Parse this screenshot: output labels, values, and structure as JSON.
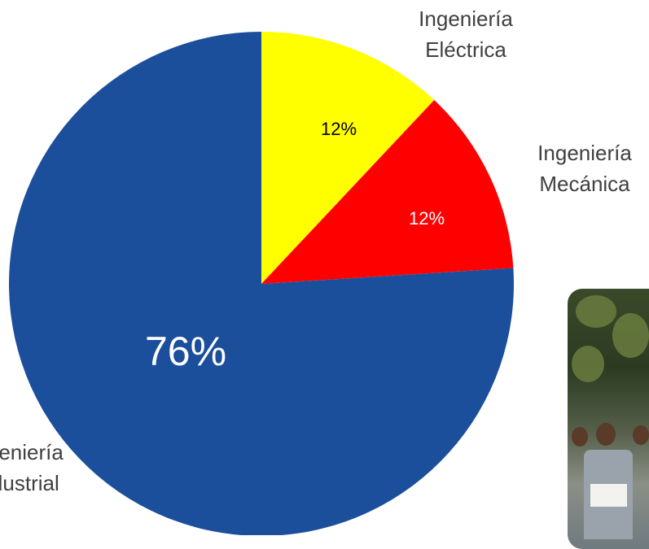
{
  "chart_data": {
    "type": "pie",
    "slices": [
      {
        "label_lines": [
          "Ingeniería",
          "Eléctrica"
        ],
        "value": 12,
        "value_label": "12%",
        "color": "#FFFF00",
        "value_text_color": "#000000"
      },
      {
        "label_lines": [
          "Ingeniería",
          "Mecánica"
        ],
        "value": 12,
        "value_label": "12%",
        "color": "#FF0000",
        "value_text_color": "#FFFFFF"
      },
      {
        "label_lines": [
          "Ingeniería",
          "Industrial"
        ],
        "value": 76,
        "value_label": "76%",
        "color": "#1B4F9C",
        "value_text_color": "#FFFFFF"
      }
    ],
    "start_angle": "12 o'clock",
    "direction": "clockwise"
  },
  "photo": {
    "icon": "group-photo"
  }
}
